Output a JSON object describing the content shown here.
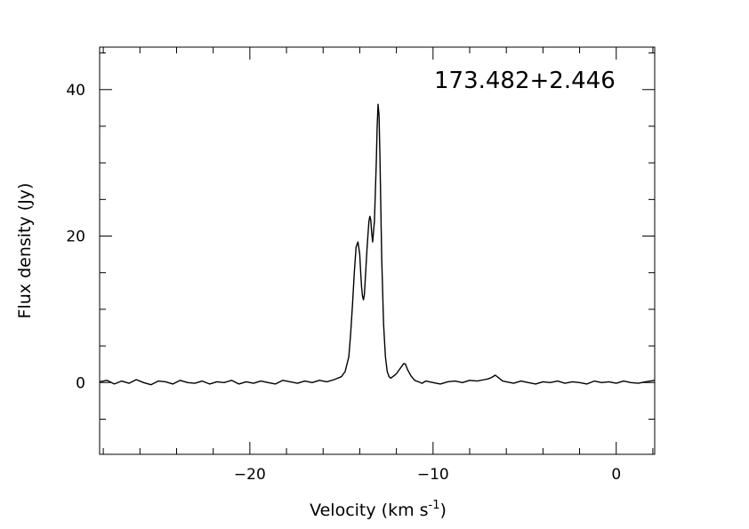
{
  "chart_data": {
    "type": "line",
    "title": "",
    "annotation": "173.482+2.446",
    "xlabel": "Velocity (km s",
    "xlabel_sup": "-1",
    "xlabel_tail": ")",
    "ylabel": "Flux density (Jy)",
    "xlim": [
      -28.2,
      2.1
    ],
    "ylim": [
      -9.8,
      45.8
    ],
    "x_major_ticks": [
      -20,
      -10,
      0
    ],
    "x_major_tick_labels": [
      "−20",
      "−10",
      "0"
    ],
    "x_minor_ticks": [
      -28,
      -26,
      -24,
      -22,
      -18,
      -16,
      -14,
      -12,
      -8,
      -6,
      -4,
      -2,
      2
    ],
    "y_major_ticks": [
      0,
      20,
      40
    ],
    "y_major_tick_labels": [
      "0",
      "20",
      "40"
    ],
    "y_minor_ticks": [
      -5,
      5,
      10,
      15,
      25,
      30,
      35,
      45
    ],
    "grid": false,
    "legend": "none",
    "line_color": "#000000",
    "series": [
      {
        "x": [
          -28.2,
          -27.8,
          -27.4,
          -27.0,
          -26.6,
          -26.2,
          -25.8,
          -25.4,
          -25.0,
          -24.6,
          -24.2,
          -23.8,
          -23.4,
          -23.0,
          -22.6,
          -22.2,
          -21.8,
          -21.4,
          -21.0,
          -20.6,
          -20.2,
          -19.8,
          -19.4,
          -19.0,
          -18.6,
          -18.2,
          -17.8,
          -17.4,
          -17.0,
          -16.6,
          -16.2,
          -15.8,
          -15.4,
          -15.0,
          -14.8,
          -14.6,
          -14.5,
          -14.4,
          -14.3,
          -14.2,
          -14.1,
          -14.0,
          -13.95,
          -13.9,
          -13.85,
          -13.8,
          -13.75,
          -13.7,
          -13.6,
          -13.5,
          -13.45,
          -13.4,
          -13.35,
          -13.3,
          -13.2,
          -13.1,
          -13.05,
          -13.0,
          -12.95,
          -12.9,
          -12.85,
          -12.8,
          -12.7,
          -12.6,
          -12.5,
          -12.4,
          -12.3,
          -12.2,
          -12.0,
          -11.8,
          -11.6,
          -11.5,
          -11.4,
          -11.2,
          -11.0,
          -10.8,
          -10.6,
          -10.4,
          -10.0,
          -9.6,
          -9.2,
          -8.8,
          -8.4,
          -8.0,
          -7.6,
          -7.2,
          -7.0,
          -6.8,
          -6.6,
          -6.4,
          -6.2,
          -6.0,
          -5.6,
          -5.2,
          -4.8,
          -4.4,
          -4.0,
          -3.6,
          -3.2,
          -2.8,
          -2.4,
          -2.0,
          -1.6,
          -1.2,
          -0.8,
          -0.4,
          0.0,
          0.4,
          0.8,
          1.2,
          1.6,
          2.1
        ],
        "y": [
          0.1,
          0.3,
          -0.2,
          0.2,
          -0.1,
          0.4,
          0.0,
          -0.3,
          0.2,
          0.1,
          -0.2,
          0.3,
          0.0,
          -0.1,
          0.2,
          -0.2,
          0.1,
          0.0,
          0.3,
          -0.2,
          0.1,
          -0.1,
          0.2,
          0.0,
          -0.2,
          0.3,
          0.1,
          -0.1,
          0.2,
          0.0,
          0.3,
          0.1,
          0.4,
          0.8,
          1.5,
          3.5,
          6.5,
          10.5,
          15.0,
          18.5,
          19.2,
          17.5,
          15.0,
          13.0,
          11.8,
          11.3,
          12.0,
          14.0,
          18.5,
          22.0,
          22.7,
          22.2,
          20.5,
          19.2,
          22.0,
          30.0,
          35.0,
          38.0,
          36.5,
          31.0,
          24.0,
          17.0,
          8.0,
          3.5,
          1.5,
          0.8,
          0.6,
          0.8,
          1.2,
          1.9,
          2.6,
          2.5,
          1.8,
          0.9,
          0.3,
          0.1,
          -0.1,
          0.2,
          0.0,
          -0.2,
          0.1,
          0.2,
          0.0,
          0.3,
          0.2,
          0.4,
          0.5,
          0.7,
          1.0,
          0.6,
          0.2,
          0.1,
          -0.1,
          0.2,
          0.0,
          -0.2,
          0.1,
          0.0,
          0.2,
          -0.1,
          0.1,
          0.0,
          -0.2,
          0.2,
          0.0,
          0.1,
          -0.1,
          0.2,
          0.0,
          -0.1,
          0.1,
          0.3
        ]
      }
    ]
  }
}
